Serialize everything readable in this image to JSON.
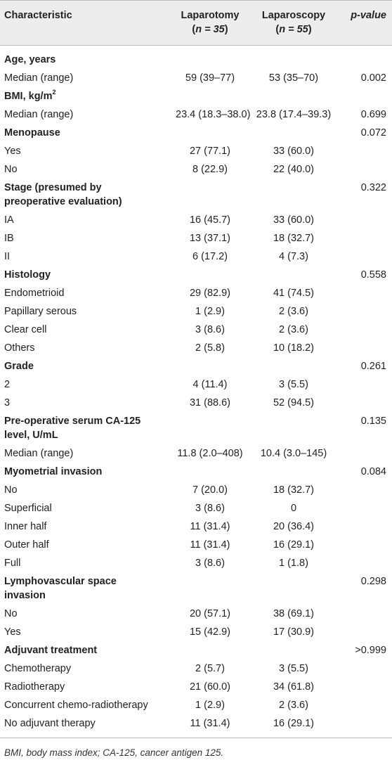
{
  "header": {
    "characteristic": "Characteristic",
    "laparotomy": "Laparotomy",
    "laparotomy_n": "(n = 35)",
    "laparoscopy": "Laparoscopy",
    "laparoscopy_n": "(n = 55)",
    "p_value": "p-value"
  },
  "rows": [
    {
      "type": "section",
      "label": "Age, years",
      "v1": "",
      "v2": "",
      "p": ""
    },
    {
      "type": "item",
      "label": "Median (range)",
      "v1": "59 (39–77)",
      "v2": "53 (35–70)",
      "p": "0.002"
    },
    {
      "type": "section",
      "label": "BMI, kg/m",
      "sup": "2",
      "v1": "",
      "v2": "",
      "p": ""
    },
    {
      "type": "item",
      "label": "Median (range)",
      "v1": "23.4 (18.3–38.0)",
      "v2": "23.8 (17.4–39.3)",
      "p": "0.699"
    },
    {
      "type": "section",
      "label": "Menopause",
      "v1": "",
      "v2": "",
      "p": "0.072"
    },
    {
      "type": "item",
      "label": "Yes",
      "v1": "27 (77.1)",
      "v2": "33 (60.0)",
      "p": ""
    },
    {
      "type": "item",
      "label": "No",
      "v1": "8 (22.9)",
      "v2": "22 (40.0)",
      "p": ""
    },
    {
      "type": "section",
      "label": "Stage (presumed by",
      "label2": "preoperative evaluation)",
      "v1": "",
      "v2": "",
      "p": "0.322"
    },
    {
      "type": "item",
      "label": "IA",
      "v1": "16 (45.7)",
      "v2": "33 (60.0)",
      "p": ""
    },
    {
      "type": "item",
      "label": "IB",
      "v1": "13 (37.1)",
      "v2": "18 (32.7)",
      "p": ""
    },
    {
      "type": "item",
      "label": "II",
      "v1": "6 (17.2)",
      "v2": "4 (7.3)",
      "p": ""
    },
    {
      "type": "section",
      "label": "Histology",
      "v1": "",
      "v2": "",
      "p": "0.558"
    },
    {
      "type": "item",
      "label": "Endometrioid",
      "v1": "29 (82.9)",
      "v2": "41 (74.5)",
      "p": ""
    },
    {
      "type": "item",
      "label": "Papillary serous",
      "v1": "1 (2.9)",
      "v2": "2 (3.6)",
      "p": ""
    },
    {
      "type": "item",
      "label": "Clear cell",
      "v1": "3 (8.6)",
      "v2": "2 (3.6)",
      "p": ""
    },
    {
      "type": "item",
      "label": "Others",
      "v1": "2 (5.8)",
      "v2": "10 (18.2)",
      "p": ""
    },
    {
      "type": "section",
      "label": "Grade",
      "v1": "",
      "v2": "",
      "p": "0.261"
    },
    {
      "type": "item",
      "label": "2",
      "v1": "4 (11.4)",
      "v2": "3 (5.5)",
      "p": ""
    },
    {
      "type": "item",
      "label": "3",
      "v1": "31 (88.6)",
      "v2": "52 (94.5)",
      "p": ""
    },
    {
      "type": "section",
      "label": "Pre-operative serum CA-125",
      "label2": "level, U/mL",
      "v1": "",
      "v2": "",
      "p": "0.135"
    },
    {
      "type": "item",
      "label": "Median (range)",
      "v1": "11.8 (2.0–408)",
      "v2": "10.4 (3.0–145)",
      "p": ""
    },
    {
      "type": "section",
      "label": "Myometrial invasion",
      "v1": "",
      "v2": "",
      "p": "0.084"
    },
    {
      "type": "item",
      "label": "No",
      "v1": "7 (20.0)",
      "v2": "18 (32.7)",
      "p": ""
    },
    {
      "type": "item",
      "label": "Superficial",
      "v1": "3 (8.6)",
      "v2": "0",
      "p": ""
    },
    {
      "type": "item",
      "label": "Inner half",
      "v1": "11 (31.4)",
      "v2": "20 (36.4)",
      "p": ""
    },
    {
      "type": "item",
      "label": "Outer half",
      "v1": "11 (31.4)",
      "v2": "16 (29.1)",
      "p": ""
    },
    {
      "type": "item",
      "label": "Full",
      "v1": "3 (8.6)",
      "v2": "1 (1.8)",
      "p": ""
    },
    {
      "type": "section",
      "label": "Lymphovascular space",
      "label2": "invasion",
      "v1": "",
      "v2": "",
      "p": "0.298"
    },
    {
      "type": "item",
      "label": "No",
      "v1": "20 (57.1)",
      "v2": "38 (69.1)",
      "p": ""
    },
    {
      "type": "item",
      "label": "Yes",
      "v1": "15 (42.9)",
      "v2": "17 (30.9)",
      "p": ""
    },
    {
      "type": "section",
      "label": "Adjuvant treatment",
      "v1": "",
      "v2": "",
      "p": ">0.999"
    },
    {
      "type": "item",
      "label": "Chemotherapy",
      "v1": "2 (5.7)",
      "v2": "3 (5.5)",
      "p": ""
    },
    {
      "type": "item",
      "label": "Radiotherapy",
      "v1": "21 (60.0)",
      "v2": "34 (61.8)",
      "p": ""
    },
    {
      "type": "item",
      "label": "Concurrent chemo-radiotherapy",
      "v1": "1 (2.9)",
      "v2": "2 (3.6)",
      "p": ""
    },
    {
      "type": "item",
      "label": "No adjuvant therapy",
      "v1": "11 (31.4)",
      "v2": "16 (29.1)",
      "p": ""
    }
  ],
  "footnote": "BMI, body mass index; CA-125, cancer antigen 125."
}
